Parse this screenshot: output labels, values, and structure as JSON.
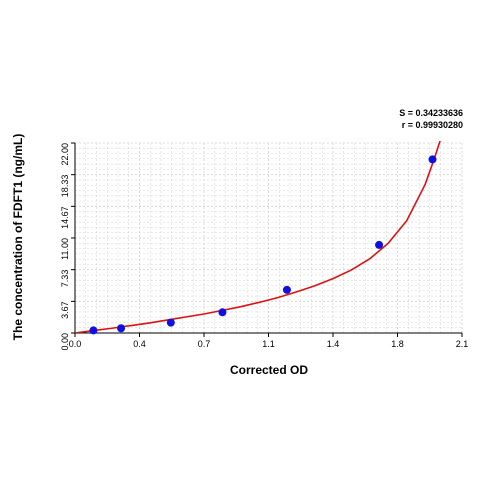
{
  "chart_data": {
    "type": "scatter",
    "title": "",
    "xlabel": "Corrected OD",
    "ylabel": "The concentration of FDFT1 (ng/mL)",
    "xlim": [
      0.0,
      2.1
    ],
    "ylim": [
      0.0,
      22.0
    ],
    "x_ticks": [
      "0.0",
      "0.4",
      "0.7",
      "1.1",
      "1.4",
      "1.8",
      "2.1"
    ],
    "y_ticks": [
      "0.00",
      "3.67",
      "7.33",
      "11.00",
      "14.67",
      "18.33",
      "22.00"
    ],
    "grid": true,
    "stats": [
      "S = 0.34233636",
      "r = 0.99930280"
    ],
    "points": [
      {
        "x": 0.1,
        "y": 0.3
      },
      {
        "x": 0.25,
        "y": 0.55
      },
      {
        "x": 0.52,
        "y": 1.2
      },
      {
        "x": 0.8,
        "y": 2.4
      },
      {
        "x": 1.15,
        "y": 5.0
      },
      {
        "x": 1.65,
        "y": 10.2
      },
      {
        "x": 1.94,
        "y": 20.1
      }
    ],
    "fit_curve": [
      {
        "x": 0.0,
        "y": 0.0
      },
      {
        "x": 0.1,
        "y": 0.28
      },
      {
        "x": 0.2,
        "y": 0.55
      },
      {
        "x": 0.3,
        "y": 0.85
      },
      {
        "x": 0.4,
        "y": 1.15
      },
      {
        "x": 0.5,
        "y": 1.5
      },
      {
        "x": 0.6,
        "y": 1.85
      },
      {
        "x": 0.7,
        "y": 2.2
      },
      {
        "x": 0.8,
        "y": 2.62
      },
      {
        "x": 0.9,
        "y": 3.05
      },
      {
        "x": 1.0,
        "y": 3.55
      },
      {
        "x": 1.1,
        "y": 4.1
      },
      {
        "x": 1.2,
        "y": 4.75
      },
      {
        "x": 1.3,
        "y": 5.45
      },
      {
        "x": 1.4,
        "y": 6.3
      },
      {
        "x": 1.5,
        "y": 7.3
      },
      {
        "x": 1.6,
        "y": 8.6
      },
      {
        "x": 1.7,
        "y": 10.4
      },
      {
        "x": 1.8,
        "y": 13.0
      },
      {
        "x": 1.9,
        "y": 17.2
      },
      {
        "x": 1.95,
        "y": 20.2
      },
      {
        "x": 2.0,
        "y": 23.5
      }
    ],
    "colors": {
      "point": "#1010e0",
      "curve": "#dd1111",
      "grid": "#d0d0d0",
      "axis": "#000000"
    }
  }
}
